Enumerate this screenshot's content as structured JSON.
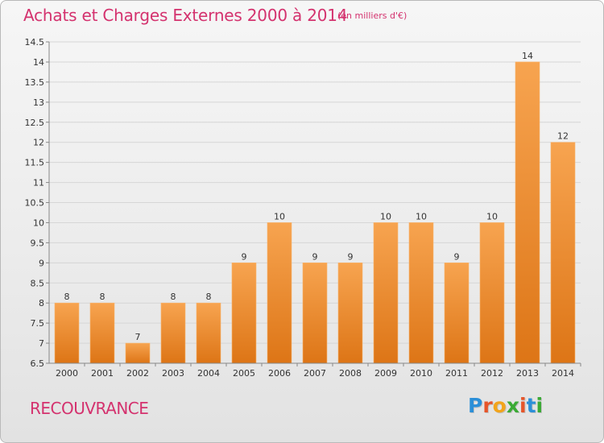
{
  "header": {
    "title": "Achats et Charges Externes 2000 à 2014",
    "unit": "(en milliers d'€)"
  },
  "footer": {
    "commune": "RECOUVRANCE",
    "logo_text": "Proxiti"
  },
  "colors": {
    "title": "#d4326e",
    "bar_top": "#f7a450",
    "bar_bottom": "#dd7516",
    "background": "#eeeeee"
  },
  "chart_data": {
    "type": "bar",
    "title": "Achats et Charges Externes 2000 à 2014",
    "subtitle": "(en milliers d'€)",
    "xlabel": "",
    "ylabel": "",
    "categories": [
      "2000",
      "2001",
      "2002",
      "2003",
      "2004",
      "2005",
      "2006",
      "2007",
      "2008",
      "2009",
      "2010",
      "2011",
      "2012",
      "2013",
      "2014"
    ],
    "values": [
      8,
      8,
      7,
      8,
      8,
      9,
      10,
      9,
      9,
      10,
      10,
      9,
      10,
      14,
      12
    ],
    "value_labels": [
      "8",
      "8",
      "7",
      "8",
      "8",
      "9",
      "10",
      "9",
      "9",
      "10",
      "10",
      "9",
      "10",
      "14",
      "12"
    ],
    "ylim": [
      6.5,
      14.5
    ],
    "yticks": [
      6.5,
      7,
      7.5,
      8,
      8.5,
      9,
      9.5,
      10,
      10.5,
      11,
      11.5,
      12,
      12.5,
      13,
      13.5,
      14,
      14.5
    ],
    "ytick_labels": [
      "6.5",
      "7",
      "7.5",
      "8",
      "8.5",
      "9",
      "9.5",
      "10",
      "10.5",
      "11",
      "11.5",
      "12",
      "12.5",
      "13",
      "13.5",
      "14",
      "14.5"
    ],
    "grid": true,
    "legend": "none"
  }
}
